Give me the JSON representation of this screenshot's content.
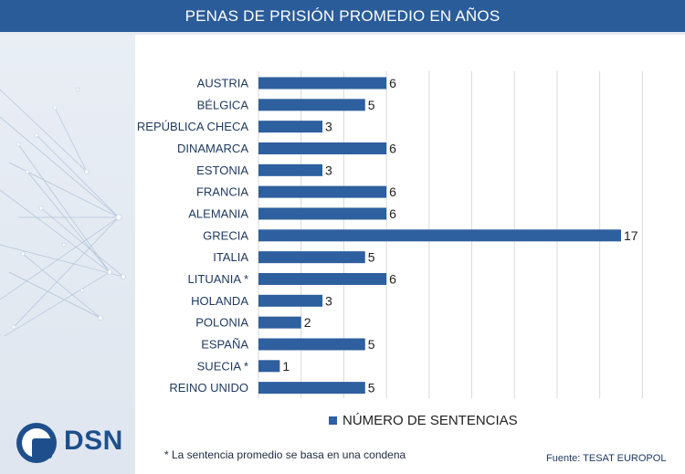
{
  "header": {
    "title": "PENAS DE PRISIÓN PROMEDIO EN AÑOS"
  },
  "brand": {
    "logo_text": "DSN",
    "accent": "#2a5c9a"
  },
  "chart_data": {
    "type": "bar",
    "orientation": "horizontal",
    "categories": [
      "AUSTRIA",
      "BÉLGICA",
      "REPÚBLICA CHECA",
      "DINAMARCA",
      "ESTONIA",
      "FRANCIA",
      "ALEMANIA",
      "GRECIA",
      "ITALIA",
      "LITUANIA *",
      "HOLANDA",
      "POLONIA",
      "ESPAÑA",
      "SUECIA *",
      "REINO UNIDO"
    ],
    "series": [
      {
        "name": "NÚMERO DE SENTENCIAS",
        "values": [
          6,
          5,
          3,
          6,
          3,
          6,
          6,
          17,
          5,
          6,
          3,
          2,
          5,
          1,
          5
        ],
        "color": "#2e5f9e"
      }
    ],
    "xlim": [
      0,
      18
    ],
    "grid": true,
    "data_labels": true,
    "legend_position": "bottom"
  },
  "legend": {
    "label": "NÚMERO DE SENTENCIAS"
  },
  "footnote": "* La sentencia promedio se basa en una condena",
  "source": "Fuente:  TESAT EUROPOL"
}
